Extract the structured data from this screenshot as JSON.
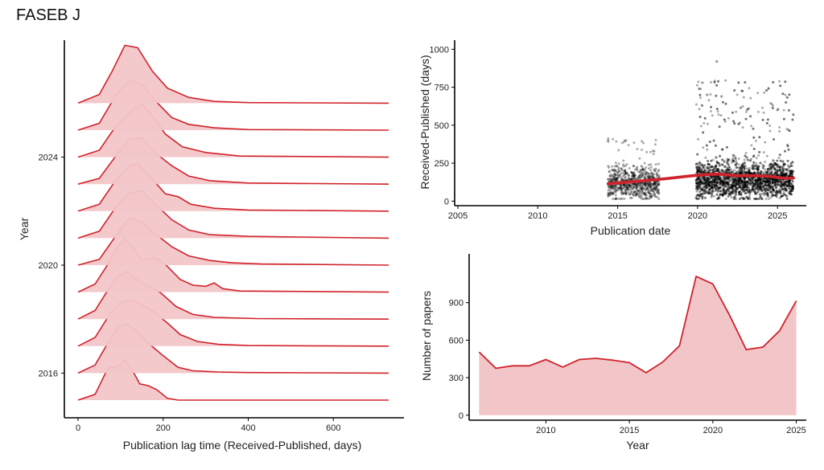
{
  "page_title": "FASEB J",
  "colors": {
    "line": "#d0232b",
    "fill": "#f2c6c9",
    "fill_dark": "#e29da3",
    "point": "#000000",
    "axis": "#000000"
  },
  "chart_data": [
    {
      "type": "area",
      "subtype": "ridgeline",
      "title": "",
      "xlabel": "Publication lag time (Received-Published, days)",
      "ylabel": "Year",
      "xlim": [
        0,
        730
      ],
      "x_ticks": [
        0,
        200,
        400,
        600
      ],
      "x_tick_labels": [
        "0",
        "200",
        "400",
        "600"
      ],
      "y_tick_labels": [
        "2016",
        "2020",
        "2024"
      ],
      "grid": false,
      "series": [
        {
          "year": 2015,
          "points": [
            [
              0,
              0
            ],
            [
              40,
              0.1
            ],
            [
              70,
              0.55
            ],
            [
              95,
              0.58
            ],
            [
              110,
              0.7
            ],
            [
              125,
              0.55
            ],
            [
              145,
              0.28
            ],
            [
              165,
              0.25
            ],
            [
              185,
              0.18
            ],
            [
              210,
              0.03
            ],
            [
              235,
              0
            ],
            [
              730,
              0
            ]
          ]
        },
        {
          "year": 2016,
          "points": [
            [
              0,
              0
            ],
            [
              40,
              0.14
            ],
            [
              70,
              0.52
            ],
            [
              95,
              0.8
            ],
            [
              115,
              0.85
            ],
            [
              135,
              0.75
            ],
            [
              165,
              0.52
            ],
            [
              200,
              0.3
            ],
            [
              235,
              0.1
            ],
            [
              270,
              0.04
            ],
            [
              330,
              0.02
            ],
            [
              400,
              0.01
            ],
            [
              730,
              0
            ]
          ]
        },
        {
          "year": 2017,
          "points": [
            [
              0,
              0
            ],
            [
              40,
              0.15
            ],
            [
              75,
              0.56
            ],
            [
              100,
              0.76
            ],
            [
              125,
              0.8
            ],
            [
              150,
              0.72
            ],
            [
              180,
              0.58
            ],
            [
              210,
              0.4
            ],
            [
              240,
              0.2
            ],
            [
              280,
              0.08
            ],
            [
              330,
              0.03
            ],
            [
              400,
              0.01
            ],
            [
              730,
              0
            ]
          ]
        },
        {
          "year": 2018,
          "points": [
            [
              0,
              0
            ],
            [
              40,
              0.15
            ],
            [
              70,
              0.5
            ],
            [
              95,
              0.76
            ],
            [
              115,
              0.82
            ],
            [
              135,
              0.7
            ],
            [
              165,
              0.58
            ],
            [
              195,
              0.45
            ],
            [
              230,
              0.22
            ],
            [
              270,
              0.08
            ],
            [
              320,
              0.03
            ],
            [
              420,
              0.01
            ],
            [
              730,
              0
            ]
          ]
        },
        {
          "year": 2019,
          "points": [
            [
              0,
              0
            ],
            [
              40,
              0.14
            ],
            [
              70,
              0.48
            ],
            [
              95,
              0.8
            ],
            [
              110,
              0.93
            ],
            [
              125,
              0.82
            ],
            [
              150,
              0.55
            ],
            [
              180,
              0.6
            ],
            [
              205,
              0.48
            ],
            [
              240,
              0.22
            ],
            [
              270,
              0.12
            ],
            [
              300,
              0.1
            ],
            [
              320,
              0.16
            ],
            [
              340,
              0.06
            ],
            [
              380,
              0.02
            ],
            [
              730,
              0
            ]
          ]
        },
        {
          "year": 2020,
          "points": [
            [
              0,
              0
            ],
            [
              50,
              0.1
            ],
            [
              90,
              0.52
            ],
            [
              120,
              0.82
            ],
            [
              150,
              0.75
            ],
            [
              180,
              0.55
            ],
            [
              220,
              0.32
            ],
            [
              260,
              0.16
            ],
            [
              310,
              0.08
            ],
            [
              360,
              0.04
            ],
            [
              430,
              0.02
            ],
            [
              730,
              0
            ]
          ]
        },
        {
          "year": 2021,
          "points": [
            [
              0,
              0
            ],
            [
              50,
              0.12
            ],
            [
              90,
              0.55
            ],
            [
              120,
              0.78
            ],
            [
              150,
              0.82
            ],
            [
              180,
              0.6
            ],
            [
              220,
              0.32
            ],
            [
              260,
              0.14
            ],
            [
              310,
              0.06
            ],
            [
              400,
              0.03
            ],
            [
              730,
              0
            ]
          ]
        },
        {
          "year": 2022,
          "points": [
            [
              0,
              0
            ],
            [
              50,
              0.12
            ],
            [
              90,
              0.55
            ],
            [
              120,
              0.78
            ],
            [
              140,
              0.82
            ],
            [
              175,
              0.55
            ],
            [
              205,
              0.3
            ],
            [
              235,
              0.25
            ],
            [
              265,
              0.12
            ],
            [
              320,
              0.05
            ],
            [
              400,
              0.02
            ],
            [
              730,
              0
            ]
          ]
        },
        {
          "year": 2023,
          "points": [
            [
              0,
              0
            ],
            [
              50,
              0.1
            ],
            [
              90,
              0.5
            ],
            [
              120,
              0.78
            ],
            [
              150,
              0.8
            ],
            [
              180,
              0.55
            ],
            [
              220,
              0.32
            ],
            [
              260,
              0.14
            ],
            [
              310,
              0.06
            ],
            [
              400,
              0.02
            ],
            [
              730,
              0
            ]
          ]
        },
        {
          "year": 2024,
          "points": [
            [
              0,
              0
            ],
            [
              50,
              0.12
            ],
            [
              90,
              0.55
            ],
            [
              125,
              0.8
            ],
            [
              150,
              0.92
            ],
            [
              175,
              0.72
            ],
            [
              205,
              0.4
            ],
            [
              245,
              0.18
            ],
            [
              300,
              0.08
            ],
            [
              380,
              0.02
            ],
            [
              730,
              0
            ]
          ]
        },
        {
          "year": 2025,
          "points": [
            [
              0,
              0
            ],
            [
              50,
              0.12
            ],
            [
              90,
              0.62
            ],
            [
              120,
              0.86
            ],
            [
              150,
              0.8
            ],
            [
              180,
              0.52
            ],
            [
              220,
              0.22
            ],
            [
              260,
              0.1
            ],
            [
              320,
              0.04
            ],
            [
              400,
              0.01
            ],
            [
              730,
              0
            ]
          ]
        },
        {
          "year": 2026,
          "points": [
            [
              0,
              0
            ],
            [
              50,
              0.15
            ],
            [
              80,
              0.55
            ],
            [
              110,
              1.0
            ],
            [
              140,
              0.96
            ],
            [
              175,
              0.55
            ],
            [
              210,
              0.26
            ],
            [
              260,
              0.1
            ],
            [
              320,
              0.03
            ],
            [
              400,
              0.01
            ],
            [
              730,
              0
            ]
          ]
        }
      ]
    },
    {
      "type": "scatter",
      "title": "",
      "xlabel": "Publication date",
      "ylabel": "Received-Published (days)",
      "xlim": [
        2004.8,
        2026.8
      ],
      "ylim": [
        -30,
        1060
      ],
      "x_ticks": [
        2005,
        2010,
        2015,
        2020,
        2025
      ],
      "y_ticks": [
        0,
        250,
        500,
        750,
        1000
      ],
      "grid": false,
      "point_clusters": [
        {
          "x_range": [
            2014.4,
            2017.6
          ],
          "y_median": 120,
          "y_max": 420,
          "n": 700
        },
        {
          "x_range": [
            2019.9,
            2026.0
          ],
          "y_median": 140,
          "y_max": 800,
          "n": 2600
        }
      ],
      "outliers": [
        [
          2021.2,
          920
        ],
        [
          2020.3,
          780
        ],
        [
          2020.1,
          740
        ],
        [
          2021.5,
          690
        ],
        [
          2025.0,
          600
        ],
        [
          2022.7,
          615
        ],
        [
          2020.6,
          700
        ],
        [
          2023.2,
          610
        ]
      ],
      "trend": {
        "x": [
          2014.4,
          2016,
          2018,
          2019.5,
          2020.5,
          2021.3,
          2022.5,
          2023.5,
          2024.5,
          2025.5,
          2026
        ],
        "y": [
          115,
          128,
          148,
          165,
          175,
          178,
          167,
          168,
          163,
          150,
          152
        ]
      }
    },
    {
      "type": "area",
      "title": "",
      "xlabel": "Year",
      "ylabel": "Number of papers",
      "xlim": [
        2005.4,
        2025.6
      ],
      "ylim": [
        -40,
        1290
      ],
      "x_ticks": [
        2010,
        2015,
        2020,
        2025
      ],
      "y_ticks": [
        0,
        300,
        600,
        900
      ],
      "grid": false,
      "x": [
        2006,
        2007,
        2008,
        2009,
        2010,
        2011,
        2012,
        2013,
        2014,
        2015,
        2016,
        2017,
        2018,
        2019,
        2020,
        2021,
        2022,
        2023,
        2024,
        2025
      ],
      "values": [
        505,
        375,
        395,
        395,
        445,
        385,
        445,
        455,
        440,
        420,
        340,
        425,
        555,
        1110,
        1050,
        800,
        525,
        545,
        675,
        915
      ]
    }
  ]
}
